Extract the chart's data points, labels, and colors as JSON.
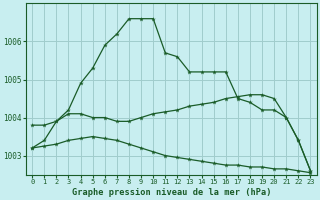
{
  "title": "Graphe pression niveau de la mer (hPa)",
  "background_color": "#c8eef0",
  "grid_color": "#a0cccc",
  "line_color": "#1a5c28",
  "x_labels": [
    "0",
    "1",
    "2",
    "3",
    "4",
    "5",
    "6",
    "7",
    "8",
    "9",
    "10",
    "11",
    "12",
    "13",
    "14",
    "15",
    "16",
    "17",
    "18",
    "19",
    "20",
    "21",
    "22",
    "23"
  ],
  "ylim": [
    1002.5,
    1007.0
  ],
  "yticks": [
    1003,
    1004,
    1005,
    1006
  ],
  "series1_x": [
    0,
    1,
    2,
    3,
    4,
    5,
    6,
    7,
    8,
    9,
    10,
    11,
    12,
    13,
    14,
    15,
    16,
    17,
    18,
    19,
    20,
    21,
    22,
    23
  ],
  "series1_y": [
    1003.2,
    1003.4,
    1003.9,
    1004.2,
    1004.9,
    1005.3,
    1005.9,
    1006.2,
    1006.6,
    1006.6,
    1006.6,
    1005.7,
    1005.6,
    1005.2,
    1005.2,
    1005.2,
    1005.2,
    1004.5,
    1004.4,
    1004.2,
    1004.2,
    1004.0,
    1003.4,
    1002.6
  ],
  "series2_x": [
    0,
    1,
    2,
    3,
    4,
    5,
    6,
    7,
    8,
    9,
    10,
    11,
    12,
    13,
    14,
    15,
    16,
    17,
    18,
    19,
    20,
    21,
    22,
    23
  ],
  "series2_y": [
    1003.8,
    1003.8,
    1003.9,
    1004.1,
    1004.1,
    1004.0,
    1004.0,
    1003.9,
    1003.9,
    1004.0,
    1004.1,
    1004.15,
    1004.2,
    1004.3,
    1004.35,
    1004.4,
    1004.5,
    1004.55,
    1004.6,
    1004.6,
    1004.5,
    1004.0,
    1003.4,
    1002.6
  ],
  "series3_x": [
    0,
    1,
    2,
    3,
    4,
    5,
    6,
    7,
    8,
    9,
    10,
    11,
    12,
    13,
    14,
    15,
    16,
    17,
    18,
    19,
    20,
    21,
    22,
    23
  ],
  "series3_y": [
    1003.2,
    1003.25,
    1003.3,
    1003.4,
    1003.45,
    1003.5,
    1003.45,
    1003.4,
    1003.3,
    1003.2,
    1003.1,
    1003.0,
    1002.95,
    1002.9,
    1002.85,
    1002.8,
    1002.75,
    1002.75,
    1002.7,
    1002.7,
    1002.65,
    1002.65,
    1002.6,
    1002.55
  ]
}
